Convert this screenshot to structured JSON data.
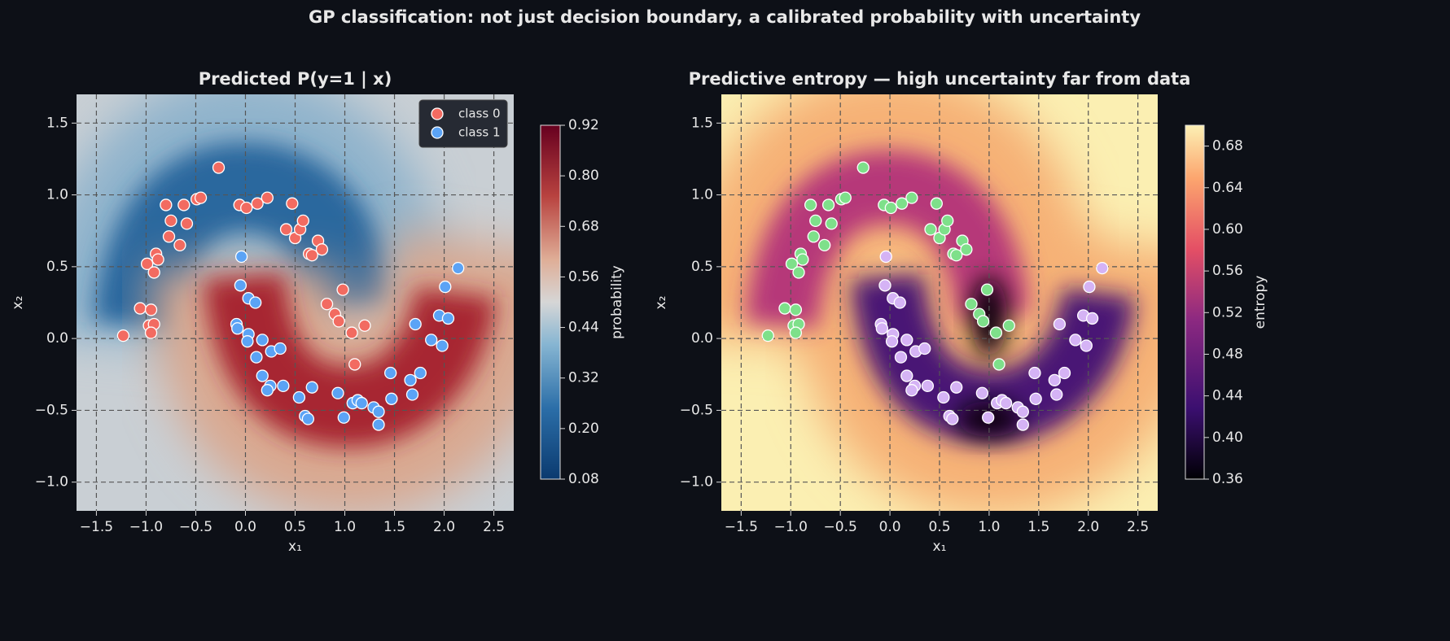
{
  "title": "GP classification: not just decision boundary, a calibrated probability with uncertainty",
  "chart_data": [
    {
      "type": "scatter",
      "title": "Predicted P(y=1 | x)",
      "xlabel": "x₁",
      "ylabel": "x₂",
      "xlim": [
        -1.7,
        2.7
      ],
      "ylim": [
        -1.2,
        1.7
      ],
      "xticks": [
        {
          "value": -1.5,
          "label": "−1.5"
        },
        {
          "value": -1.0,
          "label": "−1.0"
        },
        {
          "value": -0.5,
          "label": "−0.5"
        },
        {
          "value": 0.0,
          "label": "0.0"
        },
        0.5,
        {
          "value": 1.0,
          "label": "1.0"
        },
        1.5,
        {
          "value": 2.0,
          "label": "2.0"
        },
        2.5
      ],
      "yticks": [
        {
          "value": -1.0,
          "label": "−1.0"
        },
        {
          "value": -0.5,
          "label": "−0.5"
        },
        {
          "value": 0.0,
          "label": "0.0"
        },
        0.5,
        {
          "value": 1.0,
          "label": "1.0"
        },
        1.5
      ],
      "grid": true,
      "legend": "upper right",
      "colorbar": {
        "label": "probability",
        "lim": [
          0.08,
          0.92
        ],
        "ticks": [
          0.08,
          {
            "value": 0.2,
            "label": "0.20"
          },
          0.32,
          0.44,
          0.56,
          0.68,
          {
            "value": 0.8,
            "label": "0.80"
          },
          0.92
        ]
      },
      "series": [
        {
          "name": "class 0",
          "color": "#f26b61",
          "x": [
            -0.27,
            -0.8,
            -0.75,
            -0.77,
            -0.66,
            -0.62,
            -0.59,
            -0.49,
            -0.45,
            -0.99,
            -0.9,
            -0.88,
            -0.92,
            -1.06,
            -0.95,
            -0.97,
            -0.92,
            -0.95,
            -1.23,
            -0.06,
            0.01,
            0.12,
            0.22,
            0.47,
            0.41,
            0.5,
            0.55,
            0.58,
            0.64,
            0.67,
            0.73,
            0.77,
            0.82,
            0.9,
            0.94,
            0.98,
            1.07,
            1.2,
            1.1
          ],
          "y": [
            1.19,
            0.93,
            0.82,
            0.71,
            0.65,
            0.93,
            0.8,
            0.97,
            0.98,
            0.52,
            0.59,
            0.55,
            0.46,
            0.21,
            0.2,
            0.09,
            0.1,
            0.04,
            0.02,
            0.93,
            0.91,
            0.94,
            0.98,
            0.94,
            0.76,
            0.7,
            0.76,
            0.82,
            0.59,
            0.58,
            0.68,
            0.62,
            0.24,
            0.17,
            0.12,
            0.34,
            0.04,
            0.09,
            -0.18
          ]
        },
        {
          "name": "class 1",
          "color": "#5ba3f5",
          "x": [
            -0.04,
            -0.05,
            0.03,
            0.1,
            -0.09,
            -0.08,
            0.03,
            0.02,
            0.11,
            0.17,
            0.26,
            0.35,
            0.17,
            0.25,
            0.22,
            0.38,
            0.54,
            0.6,
            0.63,
            0.67,
            0.93,
            0.99,
            1.08,
            1.13,
            1.17,
            1.29,
            1.34,
            1.34,
            1.46,
            1.47,
            1.66,
            1.68,
            1.76,
            1.71,
            1.87,
            1.98,
            1.95,
            2.04,
            2.01,
            2.14
          ],
          "y": [
            0.57,
            0.37,
            0.28,
            0.25,
            0.1,
            0.07,
            0.03,
            -0.02,
            -0.13,
            -0.01,
            -0.09,
            -0.07,
            -0.26,
            -0.33,
            -0.36,
            -0.33,
            -0.41,
            -0.54,
            -0.56,
            -0.34,
            -0.38,
            -0.55,
            -0.45,
            -0.43,
            -0.45,
            -0.48,
            -0.51,
            -0.6,
            -0.24,
            -0.42,
            -0.29,
            -0.39,
            -0.24,
            0.1,
            -0.01,
            -0.05,
            0.16,
            0.14,
            0.36,
            0.49
          ]
        }
      ]
    },
    {
      "type": "scatter",
      "title": "Predictive entropy — high uncertainty far from data",
      "xlabel": "x₁",
      "ylabel": "x₂",
      "xlim": [
        -1.7,
        2.7
      ],
      "ylim": [
        -1.2,
        1.7
      ],
      "xticks": [
        {
          "value": -1.5,
          "label": "−1.5"
        },
        {
          "value": -1.0,
          "label": "−1.0"
        },
        {
          "value": -0.5,
          "label": "−0.5"
        },
        {
          "value": 0.0,
          "label": "0.0"
        },
        0.5,
        {
          "value": 1.0,
          "label": "1.0"
        },
        1.5,
        {
          "value": 2.0,
          "label": "2.0"
        },
        2.5
      ],
      "yticks": [
        {
          "value": -1.0,
          "label": "−1.0"
        },
        {
          "value": -0.5,
          "label": "−0.5"
        },
        {
          "value": 0.0,
          "label": "0.0"
        },
        0.5,
        {
          "value": 1.0,
          "label": "1.0"
        },
        1.5
      ],
      "grid": true,
      "colorbar": {
        "label": "entropy",
        "lim": [
          0.36,
          0.7
        ],
        "ticks": [
          0.36,
          {
            "value": 0.4,
            "label": "0.40"
          },
          0.44,
          0.48,
          0.52,
          0.56,
          {
            "value": 0.6,
            "label": "0.60"
          },
          0.64,
          0.68
        ]
      },
      "series": [
        {
          "color": "#7ee08a",
          "x": [
            -0.27,
            -0.8,
            -0.75,
            -0.77,
            -0.66,
            -0.62,
            -0.59,
            -0.49,
            -0.45,
            -0.99,
            -0.9,
            -0.88,
            -0.92,
            -1.06,
            -0.95,
            -0.97,
            -0.92,
            -0.95,
            -1.23,
            -0.06,
            0.01,
            0.12,
            0.22,
            0.47,
            0.41,
            0.5,
            0.55,
            0.58,
            0.64,
            0.67,
            0.73,
            0.77,
            0.82,
            0.9,
            0.94,
            0.98,
            1.07,
            1.2,
            1.1
          ],
          "y": [
            1.19,
            0.93,
            0.82,
            0.71,
            0.65,
            0.93,
            0.8,
            0.97,
            0.98,
            0.52,
            0.59,
            0.55,
            0.46,
            0.21,
            0.2,
            0.09,
            0.1,
            0.04,
            0.02,
            0.93,
            0.91,
            0.94,
            0.98,
            0.94,
            0.76,
            0.7,
            0.76,
            0.82,
            0.59,
            0.58,
            0.68,
            0.62,
            0.24,
            0.17,
            0.12,
            0.34,
            0.04,
            0.09,
            -0.18
          ]
        },
        {
          "color": "#d5b3f5",
          "x": [
            -0.04,
            -0.05,
            0.03,
            0.1,
            -0.09,
            -0.08,
            0.03,
            0.02,
            0.11,
            0.17,
            0.26,
            0.35,
            0.17,
            0.25,
            0.22,
            0.38,
            0.54,
            0.6,
            0.63,
            0.67,
            0.93,
            0.99,
            1.08,
            1.13,
            1.17,
            1.29,
            1.34,
            1.34,
            1.46,
            1.47,
            1.66,
            1.68,
            1.76,
            1.71,
            1.87,
            1.98,
            1.95,
            2.04,
            2.01,
            2.14
          ],
          "y": [
            0.57,
            0.37,
            0.28,
            0.25,
            0.1,
            0.07,
            0.03,
            -0.02,
            -0.13,
            -0.01,
            -0.09,
            -0.07,
            -0.26,
            -0.33,
            -0.36,
            -0.33,
            -0.41,
            -0.54,
            -0.56,
            -0.34,
            -0.38,
            -0.55,
            -0.45,
            -0.43,
            -0.45,
            -0.48,
            -0.51,
            -0.6,
            -0.24,
            -0.42,
            -0.29,
            -0.39,
            -0.24,
            0.1,
            -0.01,
            -0.05,
            0.16,
            0.14,
            0.36,
            0.49
          ]
        }
      ]
    }
  ]
}
